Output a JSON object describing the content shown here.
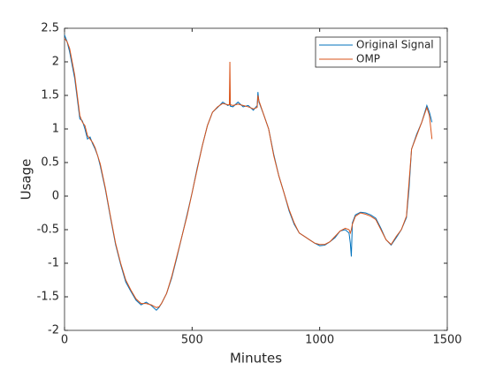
{
  "chart_data": {
    "type": "line",
    "xlabel": "Minutes",
    "ylabel": "Usage",
    "x": [
      0,
      10,
      20,
      30,
      40,
      50,
      60,
      70,
      80,
      90,
      100,
      110,
      120,
      130,
      140,
      160,
      180,
      200,
      220,
      240,
      260,
      280,
      300,
      320,
      340,
      360,
      370,
      380,
      400,
      420,
      440,
      460,
      480,
      500,
      520,
      540,
      560,
      580,
      600,
      620,
      640,
      646,
      648,
      650,
      660,
      680,
      700,
      720,
      740,
      755,
      758,
      762,
      780,
      800,
      820,
      840,
      860,
      880,
      900,
      920,
      940,
      960,
      980,
      1000,
      1020,
      1040,
      1060,
      1080,
      1100,
      1115,
      1120,
      1124,
      1128,
      1140,
      1160,
      1180,
      1200,
      1220,
      1240,
      1260,
      1280,
      1300,
      1320,
      1340,
      1350,
      1360,
      1380,
      1400,
      1420,
      1430,
      1440
    ],
    "series": [
      {
        "name": "Original Signal",
        "color": "#0072bd",
        "values": [
          2.4,
          2.3,
          2.15,
          1.95,
          1.75,
          1.45,
          1.15,
          1.12,
          1.0,
          0.85,
          0.88,
          0.78,
          0.7,
          0.6,
          0.45,
          0.1,
          -0.32,
          -0.72,
          -1.02,
          -1.28,
          -1.42,
          -1.55,
          -1.62,
          -1.58,
          -1.63,
          -1.7,
          -1.66,
          -1.6,
          -1.45,
          -1.22,
          -0.92,
          -0.6,
          -0.28,
          0.05,
          0.42,
          0.75,
          1.05,
          1.25,
          1.32,
          1.4,
          1.35,
          1.36,
          1.38,
          1.34,
          1.33,
          1.4,
          1.33,
          1.35,
          1.28,
          1.35,
          1.55,
          1.4,
          1.22,
          1.0,
          0.62,
          0.3,
          0.05,
          -0.22,
          -0.42,
          -0.55,
          -0.6,
          -0.65,
          -0.7,
          -0.74,
          -0.73,
          -0.68,
          -0.62,
          -0.52,
          -0.5,
          -0.55,
          -0.7,
          -0.9,
          -0.4,
          -0.28,
          -0.24,
          -0.25,
          -0.28,
          -0.33,
          -0.48,
          -0.65,
          -0.73,
          -0.62,
          -0.5,
          -0.32,
          0.1,
          0.7,
          0.92,
          1.1,
          1.35,
          1.25,
          1.1
        ]
      },
      {
        "name": "OMP",
        "color": "#d95319",
        "values": [
          2.35,
          2.3,
          2.2,
          2.0,
          1.8,
          1.5,
          1.2,
          1.1,
          1.05,
          0.9,
          0.85,
          0.8,
          0.72,
          0.6,
          0.48,
          0.12,
          -0.3,
          -0.7,
          -1.0,
          -1.25,
          -1.4,
          -1.53,
          -1.6,
          -1.6,
          -1.62,
          -1.66,
          -1.65,
          -1.6,
          -1.45,
          -1.2,
          -0.9,
          -0.6,
          -0.3,
          0.05,
          0.4,
          0.75,
          1.05,
          1.25,
          1.33,
          1.38,
          1.36,
          1.36,
          2.0,
          1.36,
          1.35,
          1.37,
          1.35,
          1.33,
          1.3,
          1.32,
          1.5,
          1.42,
          1.22,
          1.0,
          0.6,
          0.3,
          0.05,
          -0.2,
          -0.4,
          -0.55,
          -0.6,
          -0.65,
          -0.7,
          -0.72,
          -0.72,
          -0.68,
          -0.6,
          -0.52,
          -0.48,
          -0.5,
          -0.55,
          -0.5,
          -0.42,
          -0.3,
          -0.25,
          -0.27,
          -0.3,
          -0.35,
          -0.5,
          -0.65,
          -0.72,
          -0.6,
          -0.5,
          -0.3,
          0.2,
          0.7,
          0.9,
          1.1,
          1.32,
          1.2,
          0.85
        ]
      }
    ],
    "xlim": [
      0,
      1500
    ],
    "xticks": [
      0,
      500,
      1000,
      1500
    ],
    "ylim": [
      -2,
      2.5
    ],
    "yticks": [
      -2,
      -1.5,
      -1,
      -0.5,
      0,
      0.5,
      1,
      1.5,
      2,
      2.5
    ],
    "legend": "northeast",
    "grid": false
  }
}
